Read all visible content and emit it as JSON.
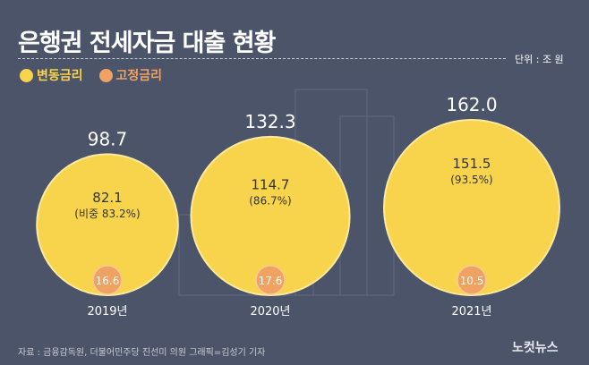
{
  "title": "은행권 전세자금 대출 현황",
  "unit": "단위 : 조 원",
  "source": "자료 : 금융감독원, 더불어민주당 진선미 의원   그래픽=김성기 기자",
  "logo": "노컷뉴스",
  "colors": {
    "variable": "#f7d44c",
    "fixed": "#f0a262",
    "background": "#4b5468"
  },
  "chart_data": {
    "type": "bubble",
    "title": "은행권 전세자금 대출 현황",
    "unit": "조 원",
    "categories": [
      "2019년",
      "2020년",
      "2021년"
    ],
    "totals": [
      "98.7",
      "132.3",
      "162.0"
    ],
    "series": [
      {
        "name": "변동금리",
        "values": [
          82.1,
          114.7,
          151.5
        ],
        "labels": [
          "82.1",
          "114.7",
          "151.5"
        ],
        "shares": [
          "(비중 83.2%)",
          "(86.7%)",
          "(93.5%)"
        ]
      },
      {
        "name": "고정금리",
        "values": [
          16.6,
          17.6,
          10.5
        ],
        "labels": [
          "16.6",
          "17.6",
          "10.5"
        ]
      }
    ],
    "legend": "top-left"
  }
}
